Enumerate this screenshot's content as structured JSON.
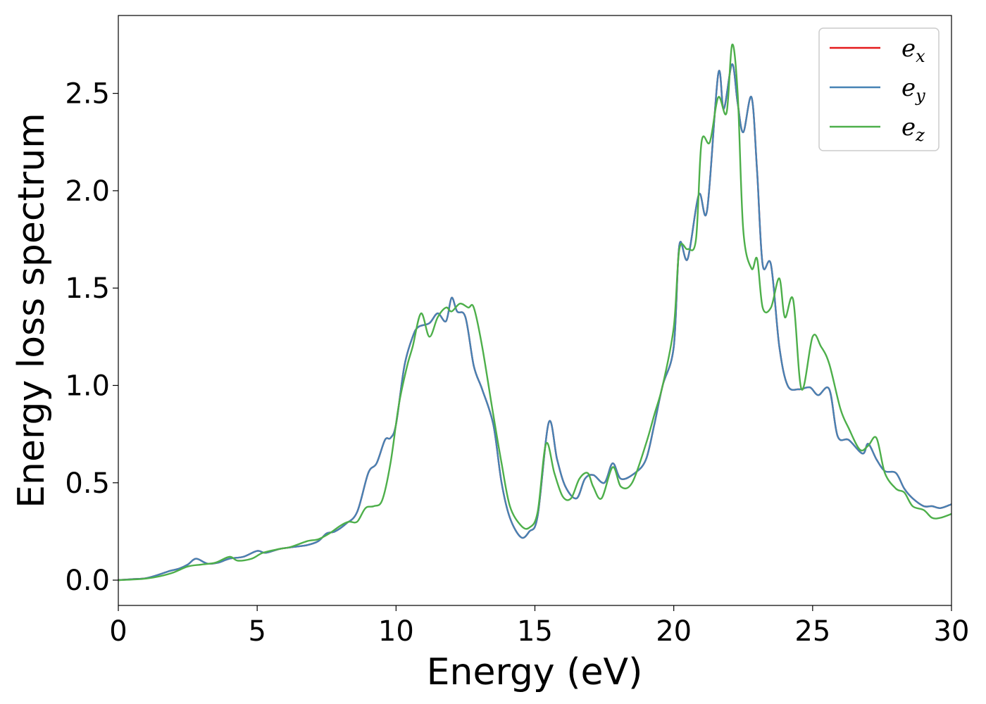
{
  "chart_data": {
    "type": "line",
    "xlabel": "Energy (eV)",
    "ylabel": "Energy loss spectrum",
    "xlim": [
      0,
      30
    ],
    "ylim": [
      -0.13,
      2.9
    ],
    "xticks": [
      0,
      5,
      10,
      15,
      20,
      25,
      30
    ],
    "xtick_labels": [
      "0",
      "5",
      "10",
      "15",
      "20",
      "25",
      "30"
    ],
    "yticks": [
      0.0,
      0.5,
      1.0,
      1.5,
      2.0,
      2.5
    ],
    "ytick_labels": [
      "0.0",
      "0.5",
      "1.0",
      "1.5",
      "2.0",
      "2.5"
    ],
    "grid": false,
    "legend": "top-right",
    "series": [
      {
        "name": "e",
        "subscript": "x",
        "color": "#e41a1c",
        "x": [
          0,
          0.5,
          1,
          1.5,
          1.8,
          2.2,
          2.5,
          2.8,
          3.2,
          3.6,
          4,
          4.5,
          5,
          5.3,
          5.8,
          6.3,
          6.8,
          7.2,
          7.5,
          7.8,
          8.2,
          8.6,
          9,
          9.3,
          9.6,
          9.8,
          10,
          10.3,
          10.6,
          10.8,
          11.2,
          11.5,
          11.8,
          12,
          12.2,
          12.5,
          12.8,
          13.1,
          13.5,
          13.8,
          14.1,
          14.5,
          14.8,
          15.1,
          15.5,
          15.8,
          16.1,
          16.5,
          16.8,
          17.1,
          17.5,
          17.8,
          18.1,
          18.6,
          19,
          19.3,
          19.6,
          20,
          20.2,
          20.5,
          20.9,
          21.2,
          21.6,
          21.8,
          22.1,
          22.3,
          22.5,
          22.8,
          23,
          23.2,
          23.5,
          23.8,
          24.1,
          24.5,
          24.9,
          25.2,
          25.6,
          25.9,
          26.3,
          26.8,
          27,
          27.3,
          27.6,
          28,
          28.3,
          28.6,
          29,
          29.3,
          29.6,
          30
        ],
        "y": [
          0,
          0.005,
          0.01,
          0.03,
          0.045,
          0.06,
          0.08,
          0.11,
          0.085,
          0.09,
          0.11,
          0.12,
          0.15,
          0.14,
          0.16,
          0.17,
          0.18,
          0.2,
          0.24,
          0.25,
          0.29,
          0.35,
          0.55,
          0.6,
          0.72,
          0.73,
          0.8,
          1.1,
          1.25,
          1.3,
          1.32,
          1.37,
          1.33,
          1.45,
          1.38,
          1.35,
          1.1,
          0.98,
          0.8,
          0.5,
          0.32,
          0.22,
          0.25,
          0.33,
          0.81,
          0.62,
          0.48,
          0.42,
          0.52,
          0.54,
          0.5,
          0.6,
          0.52,
          0.55,
          0.62,
          0.8,
          1.0,
          1.2,
          1.72,
          1.65,
          1.98,
          1.9,
          2.6,
          2.42,
          2.65,
          2.45,
          2.3,
          2.48,
          2.1,
          1.62,
          1.62,
          1.2,
          1.0,
          0.98,
          0.99,
          0.95,
          0.98,
          0.74,
          0.72,
          0.65,
          0.7,
          0.62,
          0.56,
          0.55,
          0.47,
          0.42,
          0.38,
          0.38,
          0.37,
          0.39
        ]
      },
      {
        "name": "e",
        "subscript": "y",
        "color": "#4682b4",
        "x": [
          0,
          0.5,
          1,
          1.5,
          1.8,
          2.2,
          2.5,
          2.8,
          3.2,
          3.6,
          4,
          4.5,
          5,
          5.3,
          5.8,
          6.3,
          6.8,
          7.2,
          7.5,
          7.8,
          8.2,
          8.6,
          9,
          9.3,
          9.6,
          9.8,
          10,
          10.3,
          10.6,
          10.8,
          11.2,
          11.5,
          11.8,
          12,
          12.2,
          12.5,
          12.8,
          13.1,
          13.5,
          13.8,
          14.1,
          14.5,
          14.8,
          15.1,
          15.5,
          15.8,
          16.1,
          16.5,
          16.8,
          17.1,
          17.5,
          17.8,
          18.1,
          18.6,
          19,
          19.3,
          19.6,
          20,
          20.2,
          20.5,
          20.9,
          21.2,
          21.6,
          21.8,
          22.1,
          22.3,
          22.5,
          22.8,
          23,
          23.2,
          23.5,
          23.8,
          24.1,
          24.5,
          24.9,
          25.2,
          25.6,
          25.9,
          26.3,
          26.8,
          27,
          27.3,
          27.6,
          28,
          28.3,
          28.6,
          29,
          29.3,
          29.6,
          30
        ],
        "y": [
          0,
          0.005,
          0.01,
          0.03,
          0.045,
          0.06,
          0.08,
          0.11,
          0.085,
          0.09,
          0.11,
          0.12,
          0.15,
          0.14,
          0.16,
          0.17,
          0.18,
          0.2,
          0.24,
          0.25,
          0.29,
          0.35,
          0.55,
          0.6,
          0.72,
          0.73,
          0.8,
          1.1,
          1.25,
          1.3,
          1.32,
          1.37,
          1.33,
          1.45,
          1.38,
          1.35,
          1.1,
          0.98,
          0.8,
          0.5,
          0.32,
          0.22,
          0.25,
          0.33,
          0.81,
          0.62,
          0.48,
          0.42,
          0.52,
          0.54,
          0.5,
          0.6,
          0.52,
          0.55,
          0.62,
          0.8,
          1.0,
          1.2,
          1.72,
          1.65,
          1.98,
          1.9,
          2.6,
          2.42,
          2.65,
          2.45,
          2.3,
          2.48,
          2.1,
          1.62,
          1.62,
          1.2,
          1.0,
          0.98,
          0.99,
          0.95,
          0.98,
          0.74,
          0.72,
          0.65,
          0.7,
          0.62,
          0.56,
          0.55,
          0.47,
          0.42,
          0.38,
          0.38,
          0.37,
          0.39
        ]
      },
      {
        "name": "e",
        "subscript": "z",
        "color": "#4daf4a",
        "x": [
          0,
          0.5,
          1,
          1.5,
          2,
          2.5,
          3,
          3.5,
          4,
          4.3,
          4.8,
          5.2,
          5.8,
          6.2,
          6.8,
          7.2,
          7.6,
          8,
          8.3,
          8.6,
          8.9,
          9.2,
          9.5,
          9.8,
          10.1,
          10.4,
          10.6,
          10.9,
          11.2,
          11.5,
          11.8,
          12,
          12.3,
          12.6,
          12.8,
          13.1,
          13.5,
          13.8,
          14.1,
          14.5,
          14.8,
          15.1,
          15.4,
          15.7,
          16,
          16.3,
          16.6,
          16.9,
          17.1,
          17.4,
          17.8,
          18.1,
          18.5,
          19,
          19.3,
          19.6,
          20,
          20.2,
          20.5,
          20.8,
          21,
          21.3,
          21.6,
          21.9,
          22.1,
          22.3,
          22.5,
          22.8,
          23,
          23.2,
          23.5,
          23.8,
          24,
          24.3,
          24.6,
          25,
          25.3,
          25.6,
          26,
          26.3,
          26.7,
          27,
          27.3,
          27.6,
          28,
          28.3,
          28.6,
          29,
          29.3,
          29.6,
          30
        ],
        "y": [
          0,
          0.003,
          0.008,
          0.02,
          0.04,
          0.07,
          0.08,
          0.09,
          0.12,
          0.1,
          0.11,
          0.14,
          0.16,
          0.17,
          0.2,
          0.21,
          0.24,
          0.28,
          0.3,
          0.3,
          0.37,
          0.38,
          0.41,
          0.6,
          0.9,
          1.1,
          1.2,
          1.37,
          1.25,
          1.35,
          1.4,
          1.38,
          1.42,
          1.4,
          1.4,
          1.2,
          0.85,
          0.6,
          0.38,
          0.28,
          0.27,
          0.35,
          0.7,
          0.55,
          0.43,
          0.42,
          0.52,
          0.55,
          0.48,
          0.42,
          0.58,
          0.48,
          0.5,
          0.7,
          0.85,
          1.0,
          1.3,
          1.7,
          1.7,
          1.75,
          2.25,
          2.25,
          2.48,
          2.4,
          2.75,
          2.5,
          1.8,
          1.6,
          1.65,
          1.4,
          1.4,
          1.55,
          1.35,
          1.44,
          0.98,
          1.25,
          1.2,
          1.11,
          0.88,
          0.78,
          0.67,
          0.69,
          0.73,
          0.55,
          0.47,
          0.45,
          0.38,
          0.36,
          0.32,
          0.32,
          0.34
        ]
      }
    ]
  }
}
